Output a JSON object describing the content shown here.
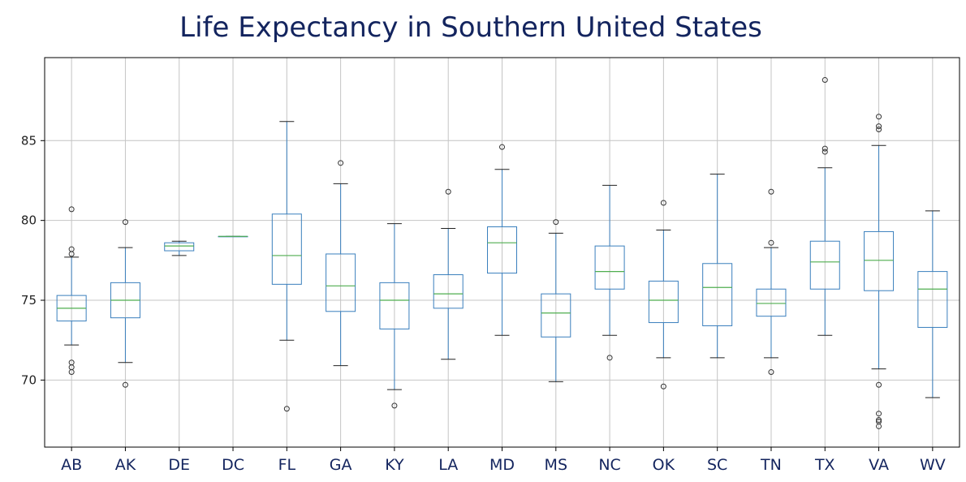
{
  "chart_data": {
    "type": "box",
    "title": "Life Expectancy in Southern United States",
    "xlabel": "",
    "ylabel": "",
    "ylim": [
      65.8,
      90.2
    ],
    "yticks": [
      70,
      75,
      80,
      85
    ],
    "grid": true,
    "categories": [
      "AB",
      "AK",
      "DE",
      "DC",
      "FL",
      "GA",
      "KY",
      "LA",
      "MD",
      "MS",
      "NC",
      "OK",
      "SC",
      "TN",
      "TX",
      "VA",
      "WV"
    ],
    "boxes": [
      {
        "label": "AB",
        "whisker_low": 72.2,
        "q1": 73.7,
        "median": 74.5,
        "q3": 75.3,
        "whisker_high": 77.7,
        "outliers": [
          80.7,
          78.2,
          77.9,
          71.1,
          70.8,
          70.5
        ]
      },
      {
        "label": "AK",
        "whisker_low": 71.1,
        "q1": 73.9,
        "median": 75.0,
        "q3": 76.1,
        "whisker_high": 78.3,
        "outliers": [
          79.9,
          69.7
        ]
      },
      {
        "label": "DE",
        "whisker_low": 77.8,
        "q1": 78.1,
        "median": 78.4,
        "q3": 78.6,
        "whisker_high": 78.7,
        "outliers": []
      },
      {
        "label": "DC",
        "whisker_low": 79.0,
        "q1": 79.0,
        "median": 79.0,
        "q3": 79.0,
        "whisker_high": 79.0,
        "outliers": []
      },
      {
        "label": "FL",
        "whisker_low": 72.5,
        "q1": 76.0,
        "median": 77.8,
        "q3": 80.4,
        "whisker_high": 86.2,
        "outliers": [
          68.2
        ]
      },
      {
        "label": "GA",
        "whisker_low": 70.9,
        "q1": 74.3,
        "median": 75.9,
        "q3": 77.9,
        "whisker_high": 82.3,
        "outliers": [
          83.6
        ]
      },
      {
        "label": "KY",
        "whisker_low": 69.4,
        "q1": 73.2,
        "median": 75.0,
        "q3": 76.1,
        "whisker_high": 79.8,
        "outliers": [
          68.4
        ]
      },
      {
        "label": "LA",
        "whisker_low": 71.3,
        "q1": 74.5,
        "median": 75.4,
        "q3": 76.6,
        "whisker_high": 79.5,
        "outliers": [
          81.8
        ]
      },
      {
        "label": "MD",
        "whisker_low": 72.8,
        "q1": 76.7,
        "median": 78.6,
        "q3": 79.6,
        "whisker_high": 83.2,
        "outliers": [
          84.6
        ]
      },
      {
        "label": "MS",
        "whisker_low": 69.9,
        "q1": 72.7,
        "median": 74.2,
        "q3": 75.4,
        "whisker_high": 79.2,
        "outliers": [
          79.9
        ]
      },
      {
        "label": "NC",
        "whisker_low": 72.8,
        "q1": 75.7,
        "median": 76.8,
        "q3": 78.4,
        "whisker_high": 82.2,
        "outliers": [
          71.4
        ]
      },
      {
        "label": "OK",
        "whisker_low": 71.4,
        "q1": 73.6,
        "median": 75.0,
        "q3": 76.2,
        "whisker_high": 79.4,
        "outliers": [
          81.1,
          69.6
        ]
      },
      {
        "label": "SC",
        "whisker_low": 71.4,
        "q1": 73.4,
        "median": 75.8,
        "q3": 77.3,
        "whisker_high": 82.9,
        "outliers": []
      },
      {
        "label": "TN",
        "whisker_low": 71.4,
        "q1": 74.0,
        "median": 74.8,
        "q3": 75.7,
        "whisker_high": 78.3,
        "outliers": [
          81.8,
          78.6,
          70.5
        ]
      },
      {
        "label": "TX",
        "whisker_low": 72.8,
        "q1": 75.7,
        "median": 77.4,
        "q3": 78.7,
        "whisker_high": 83.3,
        "outliers": [
          88.8,
          84.5,
          84.3
        ]
      },
      {
        "label": "VA",
        "whisker_low": 70.7,
        "q1": 75.6,
        "median": 77.5,
        "q3": 79.3,
        "whisker_high": 84.7,
        "outliers": [
          86.5,
          85.9,
          85.7,
          69.7,
          67.9,
          67.5,
          67.4,
          67.1
        ]
      },
      {
        "label": "WV",
        "whisker_low": 68.9,
        "q1": 73.3,
        "median": 75.7,
        "q3": 76.8,
        "whisker_high": 80.6,
        "outliers": []
      }
    ]
  },
  "colors": {
    "box": "#3a7fbd",
    "median": "#4fae4f",
    "outlier": "#333333",
    "whisker_cap": "#222222",
    "grid": "#c4c4c4",
    "title": "#13245e",
    "xtick": "#13245e"
  }
}
